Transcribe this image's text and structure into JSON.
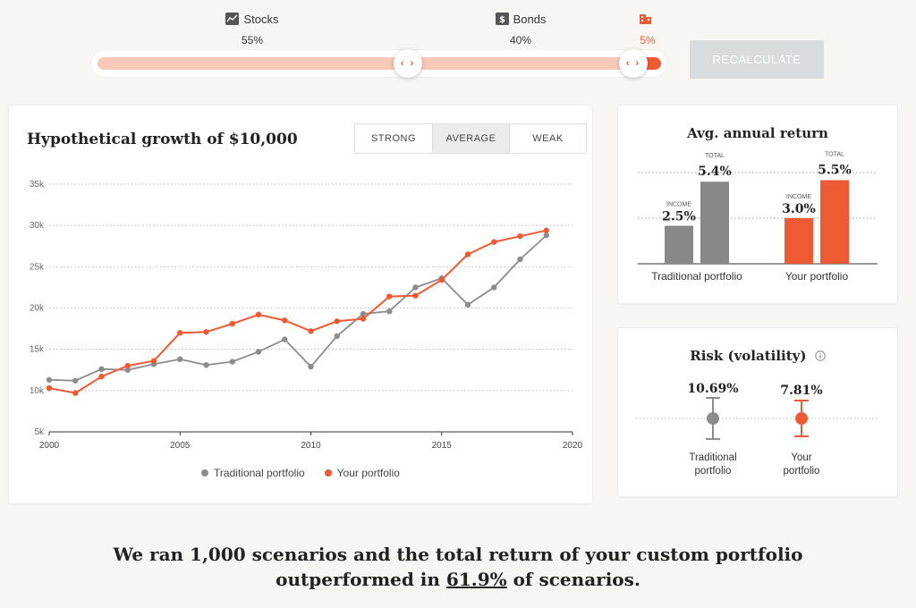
{
  "allocation": {
    "stocks": {
      "label": "Stocks",
      "pct": "55%"
    },
    "bonds": {
      "label": "Bonds",
      "pct": "40%"
    },
    "cash": {
      "label": "",
      "pct": "5%"
    }
  },
  "slider": {
    "segments": [
      55,
      40,
      5
    ]
  },
  "buttons": {
    "recalculate": "RECALCULATE"
  },
  "growth": {
    "title": "Hypothetical growth of $10,000",
    "tabs": [
      "STRONG",
      "AVERAGE",
      "WEAK"
    ],
    "active_tab": "AVERAGE",
    "legend": [
      "Traditional portfolio",
      "Your portfolio"
    ]
  },
  "chart_data": {
    "type": "line",
    "title": "Hypothetical growth of $10,000",
    "x": [
      2000,
      2001,
      2002,
      2003,
      2004,
      2005,
      2006,
      2007,
      2008,
      2009,
      2010,
      2011,
      2012,
      2013,
      2014,
      2015,
      2016,
      2017,
      2018,
      2019
    ],
    "series": [
      {
        "name": "Traditional portfolio",
        "color": "#8c8c8c",
        "values": [
          11300,
          11200,
          12600,
          12500,
          13200,
          13800,
          13100,
          13500,
          14700,
          16200,
          12900,
          16600,
          19300,
          19600,
          22500,
          23600,
          20400,
          22500,
          25900,
          28800
        ]
      },
      {
        "name": "Your portfolio",
        "color": "#ee5a33",
        "values": [
          10300,
          9700,
          11700,
          13000,
          13600,
          17000,
          17100,
          18100,
          19200,
          18500,
          17200,
          18400,
          18700,
          21400,
          21500,
          23400,
          26500,
          28000,
          28700,
          29400
        ]
      }
    ],
    "xticks": [
      "2000",
      "2005",
      "2010",
      "2015",
      "2020"
    ],
    "yticks": [
      "5k",
      "10k",
      "15k",
      "20k",
      "25k",
      "30k",
      "35k"
    ],
    "xlim": [
      2000,
      2020
    ],
    "ylim": [
      5000,
      35000
    ],
    "grid": true,
    "legend_position": "bottom"
  },
  "returns": {
    "title": "Avg. annual return",
    "groups": [
      {
        "label": "Traditional portfolio",
        "income": 2.5,
        "income_label": "2.5%",
        "total": 5.4,
        "total_label": "5.4%",
        "color": "#8c8c8c"
      },
      {
        "label": "Your portfolio",
        "income": 3.0,
        "income_label": "3.0%",
        "total": 5.5,
        "total_label": "5.5%",
        "color": "#ee5a33"
      }
    ],
    "income_tag": "INCOME",
    "total_tag": "TOTAL"
  },
  "risk": {
    "title": "Risk (volatility)",
    "info_icon": "info-icon",
    "items": [
      {
        "label": "Traditional portfolio",
        "value": "10.69%",
        "color": "#8c8c8c"
      },
      {
        "label": "Your portfolio",
        "value": "7.81%",
        "color": "#ee5a33"
      }
    ]
  },
  "summary": {
    "line1": "We ran 1,000 scenarios and the total return of your custom portfolio",
    "pre": "outperformed in ",
    "pct": "61.9%",
    "post": " of scenarios."
  }
}
